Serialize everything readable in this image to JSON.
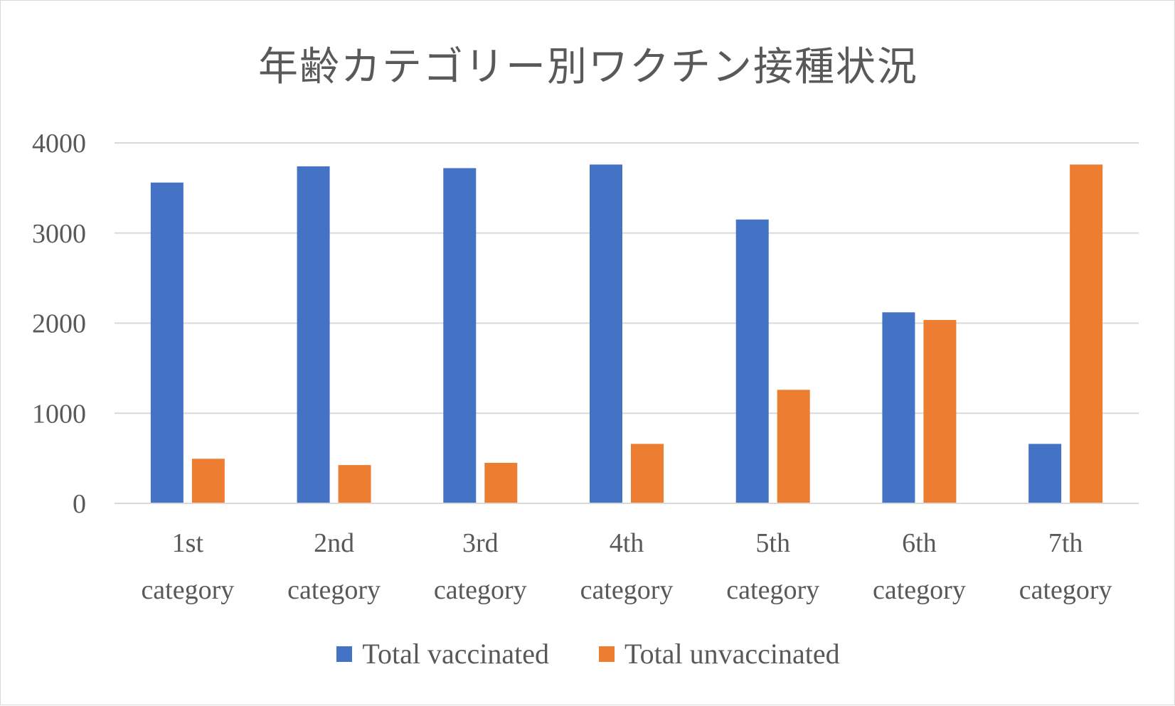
{
  "chart_data": {
    "type": "bar",
    "title": "年齢カテゴリー別ワクチン接種状況",
    "categories": [
      [
        "1st",
        "category"
      ],
      [
        "2nd",
        "category"
      ],
      [
        "3rd",
        "category"
      ],
      [
        "4th",
        "category"
      ],
      [
        "5th",
        "category"
      ],
      [
        "6th",
        "category"
      ],
      [
        "7th",
        "category"
      ]
    ],
    "series": [
      {
        "name": "Total vaccinated",
        "color": "#4472c4",
        "values": [
          3560,
          3740,
          3720,
          3760,
          3150,
          2120,
          660
        ]
      },
      {
        "name": "Total unvaccinated",
        "color": "#ed7d31",
        "values": [
          495,
          425,
          450,
          660,
          1260,
          2035,
          3760
        ]
      }
    ],
    "ylim": [
      0,
      4000
    ],
    "yticks": [
      0,
      1000,
      2000,
      3000,
      4000
    ],
    "grid": true,
    "legend": "bottom"
  }
}
